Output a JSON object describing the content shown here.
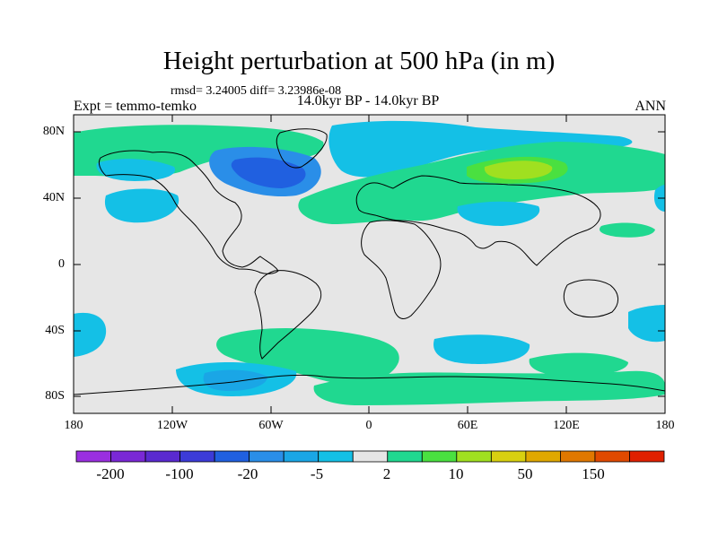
{
  "title": "Height perturbation at 500 hPa (in m)",
  "stats": "rmsd= 3.24005 diff= 3.23986e-08",
  "experiment": "Expt = temmo-temko",
  "period": "14.0kyr BP - 14.0kyr BP",
  "season": "ANN",
  "map": {
    "projection": "cylindrical equidistant",
    "lon_range": [
      -180,
      180
    ],
    "lat_range": [
      -90,
      90
    ],
    "background_color": "#e6e6e6",
    "lat_ticks": [
      "80N",
      "40N",
      "0",
      "40S",
      "80S"
    ],
    "lon_ticks": [
      "180",
      "120W",
      "60W",
      "0",
      "60E",
      "120E",
      "180"
    ]
  },
  "colorbar": {
    "colors": [
      "#9a2fe0",
      "#7a28d6",
      "#5a2ad0",
      "#3c3bd8",
      "#2060e0",
      "#2a8ee8",
      "#1aa6e6",
      "#14c0e6",
      "#e6e6e6",
      "#20d890",
      "#4ae040",
      "#a0e020",
      "#d8d010",
      "#e0a800",
      "#e07800",
      "#e04a00",
      "#e02000"
    ],
    "labels": [
      "-200",
      "-100",
      "-20",
      "-5",
      "2",
      "10",
      "50",
      "150"
    ]
  }
}
